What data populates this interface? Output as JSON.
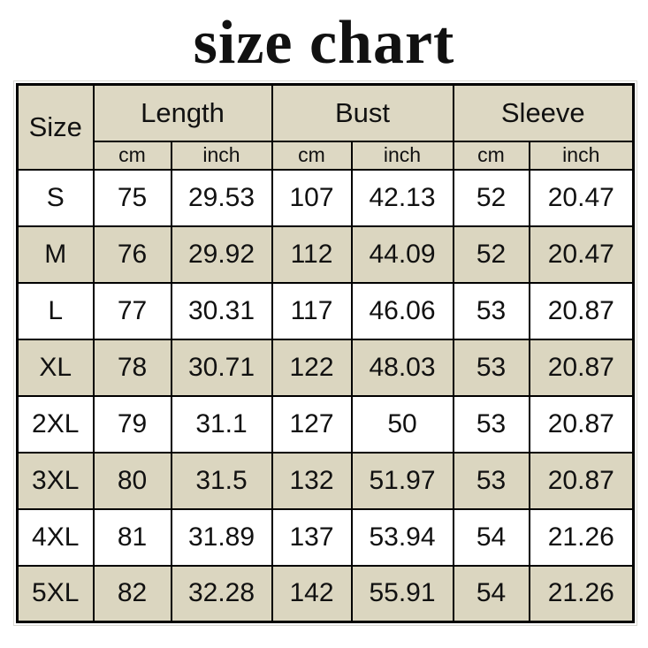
{
  "page": {
    "title": "size chart"
  },
  "colors": {
    "header_bg": "#ddd8c3",
    "alt_row_bg": "#dbd6c0",
    "border": "#000000",
    "text": "#111111",
    "row_bg": "#ffffff"
  },
  "table": {
    "header": {
      "size_label": "Size",
      "groups": [
        "Length",
        "Bust",
        "Sleeve"
      ],
      "units": [
        "cm",
        "inch",
        "cm",
        "inch",
        "cm",
        "inch"
      ]
    }
  },
  "chart_data": {
    "type": "table",
    "title": "size chart",
    "columns": [
      "Size",
      "Length cm",
      "Length inch",
      "Bust cm",
      "Bust inch",
      "Sleeve cm",
      "Sleeve inch"
    ],
    "rows": [
      [
        "S",
        "75",
        "29.53",
        "107",
        "42.13",
        "52",
        "20.47"
      ],
      [
        "M",
        "76",
        "29.92",
        "112",
        "44.09",
        "52",
        "20.47"
      ],
      [
        "L",
        "77",
        "30.31",
        "117",
        "46.06",
        "53",
        "20.87"
      ],
      [
        "XL",
        "78",
        "30.71",
        "122",
        "48.03",
        "53",
        "20.87"
      ],
      [
        "2XL",
        "79",
        "31.1",
        "127",
        "50",
        "53",
        "20.87"
      ],
      [
        "3XL",
        "80",
        "31.5",
        "132",
        "51.97",
        "53",
        "20.87"
      ],
      [
        "4XL",
        "81",
        "31.89",
        "137",
        "53.94",
        "54",
        "21.26"
      ],
      [
        "5XL",
        "82",
        "32.28",
        "142",
        "55.91",
        "54",
        "21.26"
      ]
    ]
  }
}
